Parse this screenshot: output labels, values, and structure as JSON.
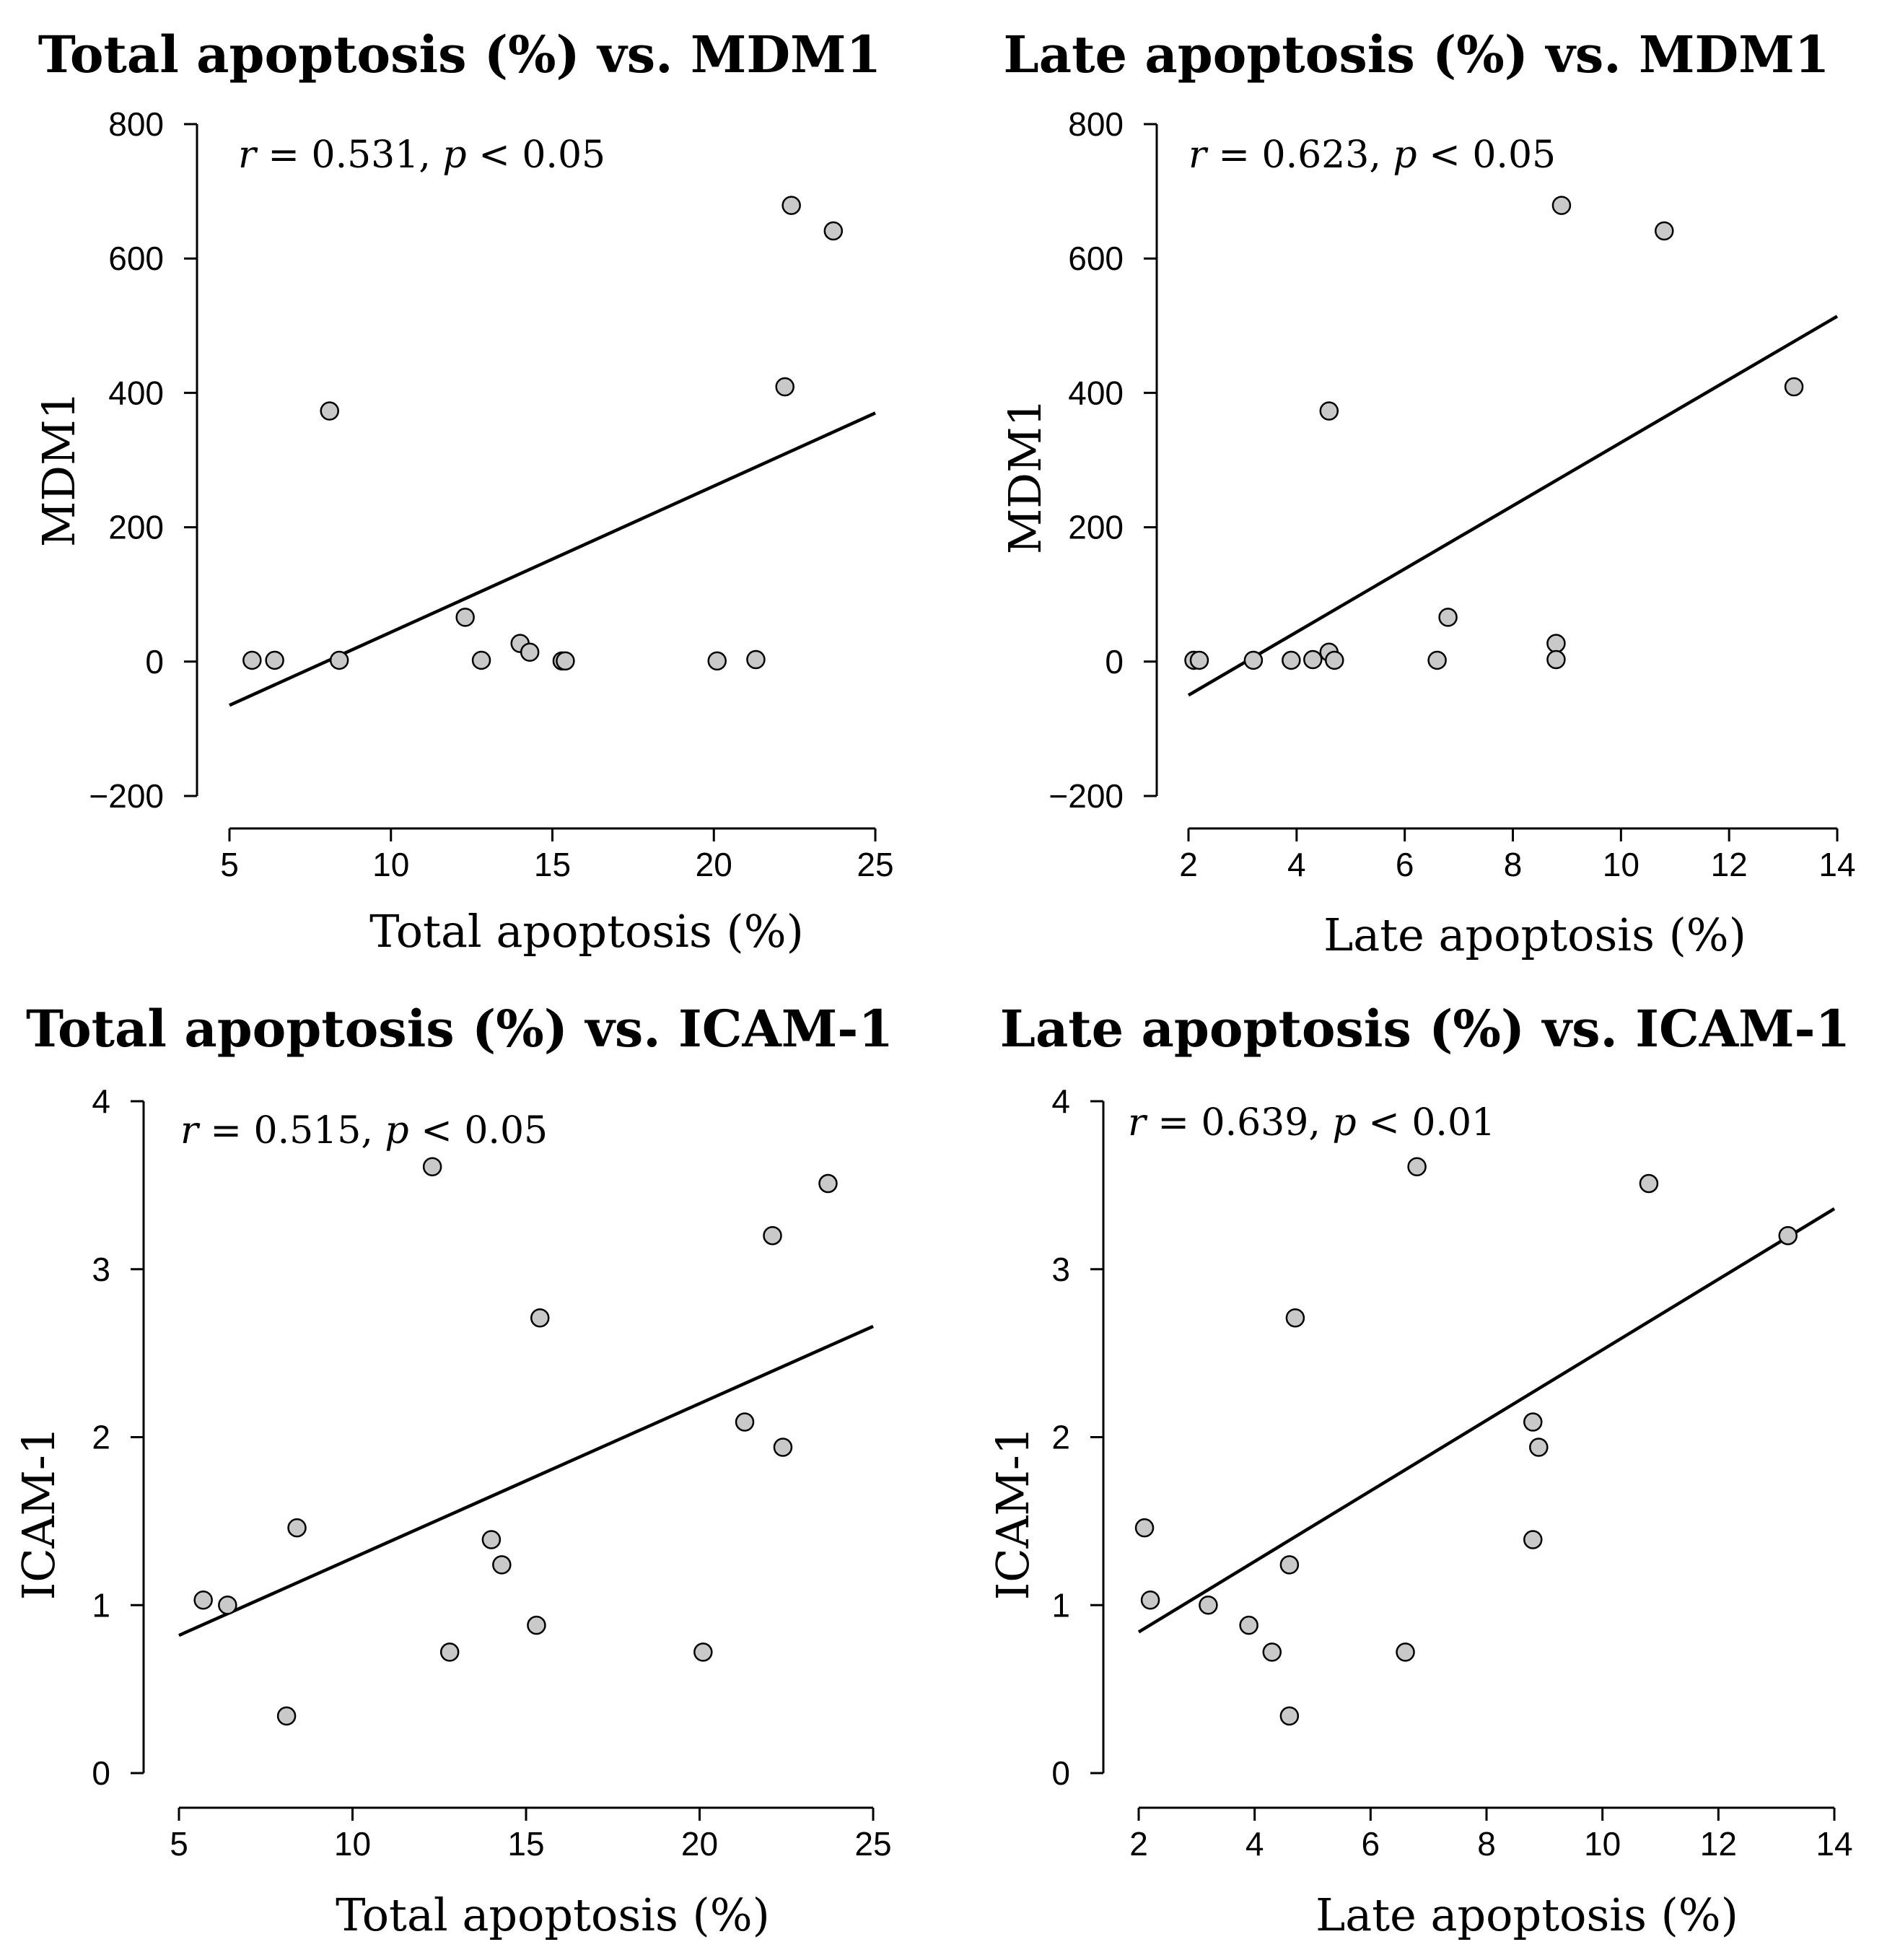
{
  "chart_data": [
    {
      "type": "scatter",
      "title": "Total apoptosis (%) vs. MDM1",
      "xlabel": "Total apoptosis (%)",
      "ylabel": "MDM1",
      "xlim": [
        5,
        25
      ],
      "ylim": [
        -200,
        800
      ],
      "xticks": [
        "5",
        "10",
        "15",
        "20",
        "25"
      ],
      "yticks": [
        "−200",
        "0",
        "200",
        "400",
        "600",
        "800"
      ],
      "annotation": {
        "r_sym": "r",
        "r_val": " = 0.531, ",
        "p_sym": "p",
        "p_val": " < 0.05"
      },
      "points": [
        {
          "x": 5.7,
          "y": 2
        },
        {
          "x": 6.4,
          "y": 2
        },
        {
          "x": 8.4,
          "y": 2
        },
        {
          "x": 8.1,
          "y": 373
        },
        {
          "x": 12.3,
          "y": 66
        },
        {
          "x": 12.8,
          "y": 2
        },
        {
          "x": 14.0,
          "y": 27
        },
        {
          "x": 14.3,
          "y": 14
        },
        {
          "x": 15.3,
          "y": 1
        },
        {
          "x": 15.4,
          "y": 1
        },
        {
          "x": 20.1,
          "y": 1
        },
        {
          "x": 21.3,
          "y": 3
        },
        {
          "x": 22.2,
          "y": 409
        },
        {
          "x": 22.4,
          "y": 679
        },
        {
          "x": 23.7,
          "y": 641
        }
      ],
      "regression": {
        "x0": 5.0,
        "y0": -65,
        "x1": 25.0,
        "y1": 370
      }
    },
    {
      "type": "scatter",
      "title": "Late apoptosis (%) vs. MDM1",
      "xlabel": "Late apoptosis (%)",
      "ylabel": "MDM1",
      "xlim": [
        2,
        14
      ],
      "ylim": [
        -200,
        800
      ],
      "xticks": [
        "2",
        "4",
        "6",
        "8",
        "10",
        "12",
        "14"
      ],
      "yticks": [
        "−200",
        "0",
        "200",
        "400",
        "600",
        "800"
      ],
      "annotation": {
        "r_sym": "r",
        "r_val": " = 0.623, ",
        "p_sym": "p",
        "p_val": " < 0.05"
      },
      "points": [
        {
          "x": 2.1,
          "y": 2
        },
        {
          "x": 2.2,
          "y": 2
        },
        {
          "x": 3.2,
          "y": 2
        },
        {
          "x": 3.9,
          "y": 2
        },
        {
          "x": 4.3,
          "y": 3
        },
        {
          "x": 4.6,
          "y": 14
        },
        {
          "x": 4.7,
          "y": 2
        },
        {
          "x": 4.6,
          "y": 373
        },
        {
          "x": 6.6,
          "y": 2
        },
        {
          "x": 6.8,
          "y": 66
        },
        {
          "x": 8.8,
          "y": 27
        },
        {
          "x": 8.8,
          "y": 3
        },
        {
          "x": 8.9,
          "y": 679
        },
        {
          "x": 10.8,
          "y": 641
        },
        {
          "x": 13.2,
          "y": 409
        }
      ],
      "regression": {
        "x0": 2.0,
        "y0": -50,
        "x1": 14.0,
        "y1": 514
      }
    },
    {
      "type": "scatter",
      "title": "Total apoptosis (%) vs. ICAM-1",
      "xlabel": "Total apoptosis (%)",
      "ylabel": "ICAM-1",
      "xlim": [
        5,
        25
      ],
      "ylim": [
        0,
        4
      ],
      "xticks": [
        "5",
        "10",
        "15",
        "20",
        "25"
      ],
      "yticks": [
        "0",
        "1",
        "2",
        "3",
        "4"
      ],
      "annotation": {
        "r_sym": "r",
        "r_val": " = 0.515, ",
        "p_sym": "p",
        "p_val": " < 0.05"
      },
      "points": [
        {
          "x": 5.7,
          "y": 1.03
        },
        {
          "x": 6.4,
          "y": 1.0
        },
        {
          "x": 8.1,
          "y": 0.34
        },
        {
          "x": 8.4,
          "y": 1.46
        },
        {
          "x": 12.3,
          "y": 3.61
        },
        {
          "x": 12.8,
          "y": 0.72
        },
        {
          "x": 14.0,
          "y": 1.39
        },
        {
          "x": 14.3,
          "y": 1.24
        },
        {
          "x": 15.3,
          "y": 0.88
        },
        {
          "x": 15.4,
          "y": 2.71
        },
        {
          "x": 20.1,
          "y": 0.72
        },
        {
          "x": 21.3,
          "y": 2.09
        },
        {
          "x": 22.1,
          "y": 3.2
        },
        {
          "x": 22.4,
          "y": 1.94
        },
        {
          "x": 23.7,
          "y": 3.51
        }
      ],
      "regression": {
        "x0": 5.0,
        "y0": 0.82,
        "x1": 25.0,
        "y1": 2.66
      }
    },
    {
      "type": "scatter",
      "title": "Late apoptosis (%) vs. ICAM-1",
      "xlabel": "Late apoptosis (%)",
      "ylabel": "ICAM-1",
      "xlim": [
        2,
        14
      ],
      "ylim": [
        0,
        4
      ],
      "xticks": [
        "2",
        "4",
        "6",
        "8",
        "10",
        "12",
        "14"
      ],
      "yticks": [
        "0",
        "1",
        "2",
        "3",
        "4"
      ],
      "annotation": {
        "r_sym": "r",
        "r_val": " = 0.639, ",
        "p_sym": "p",
        "p_val": " < 0.01"
      },
      "points": [
        {
          "x": 2.1,
          "y": 1.46
        },
        {
          "x": 2.2,
          "y": 1.03
        },
        {
          "x": 3.2,
          "y": 1.0
        },
        {
          "x": 3.9,
          "y": 0.88
        },
        {
          "x": 4.3,
          "y": 0.72
        },
        {
          "x": 4.6,
          "y": 1.24
        },
        {
          "x": 4.6,
          "y": 0.34
        },
        {
          "x": 4.7,
          "y": 2.71
        },
        {
          "x": 6.6,
          "y": 0.72
        },
        {
          "x": 6.8,
          "y": 3.61
        },
        {
          "x": 8.8,
          "y": 2.09
        },
        {
          "x": 8.8,
          "y": 1.39
        },
        {
          "x": 8.9,
          "y": 1.94
        },
        {
          "x": 10.8,
          "y": 3.51
        },
        {
          "x": 13.2,
          "y": 3.2
        }
      ],
      "regression": {
        "x0": 2.0,
        "y0": 0.84,
        "x1": 14.0,
        "y1": 3.36
      }
    }
  ]
}
